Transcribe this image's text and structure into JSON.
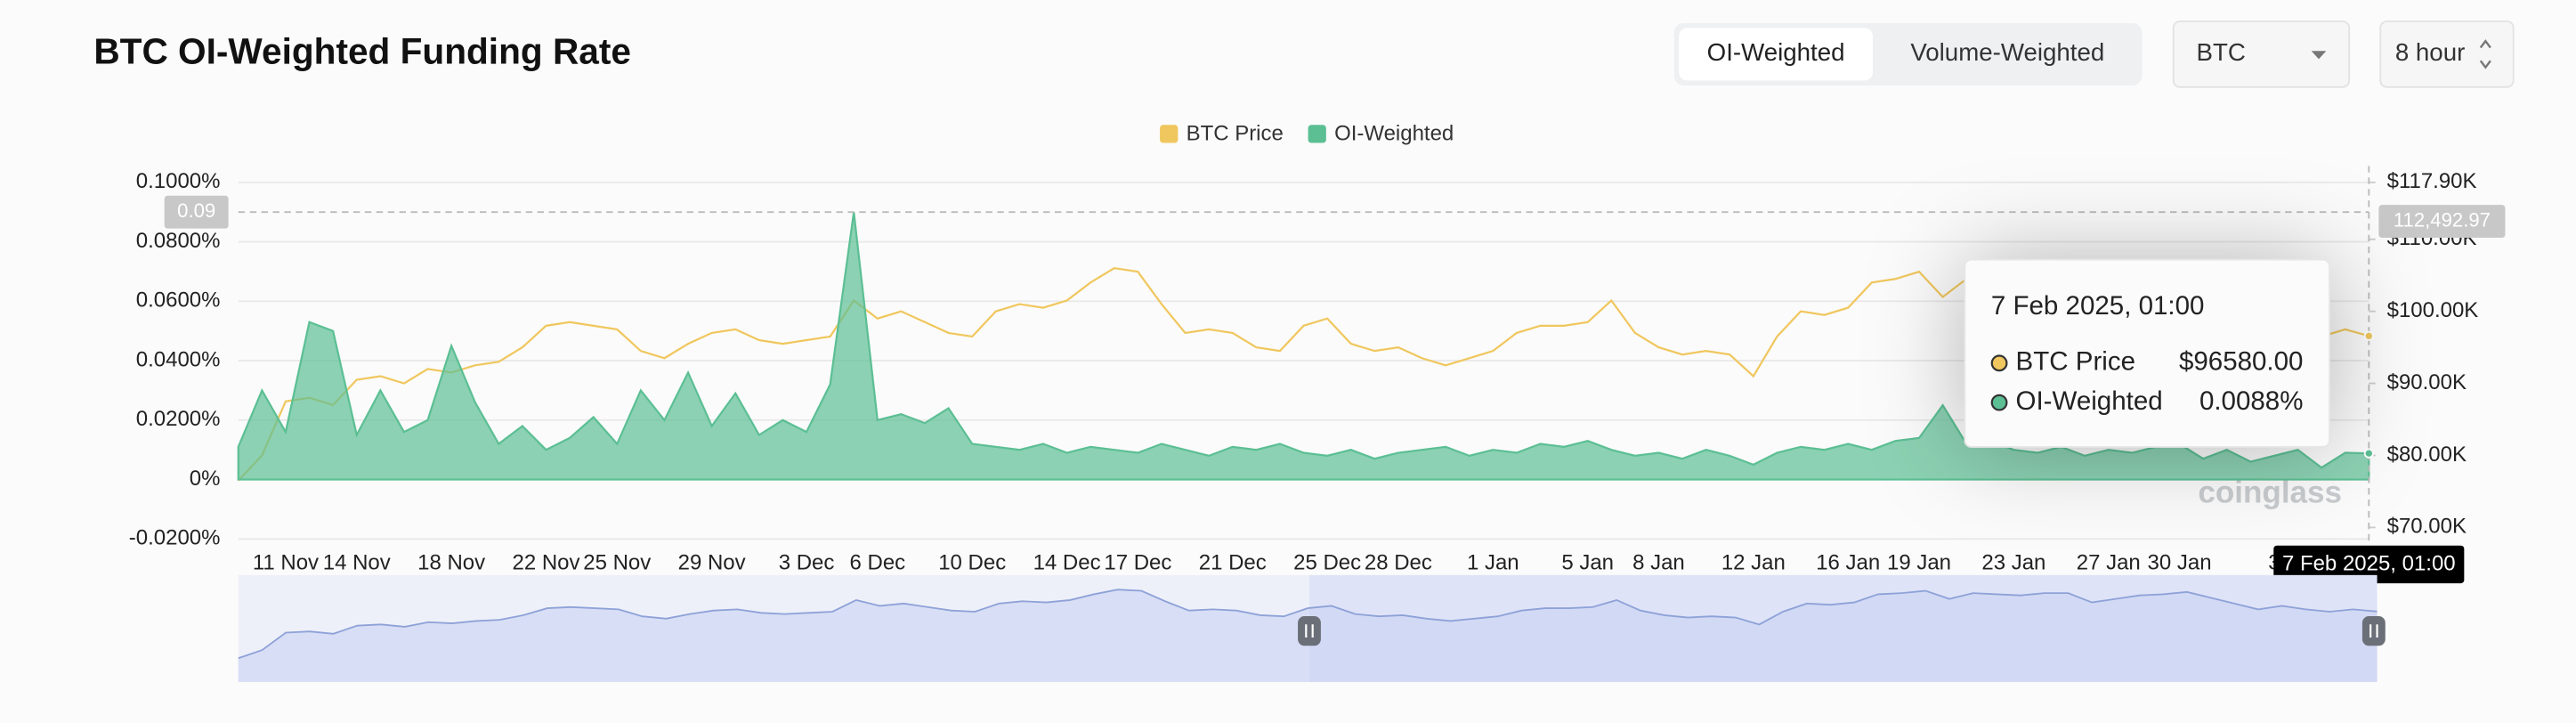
{
  "chart_data": {
    "type": "line",
    "title": "BTC OI-Weighted Funding Rate",
    "categories": [
      null,
      null,
      "11 Nov",
      null,
      null,
      "14 Nov",
      null,
      null,
      null,
      "18 Nov",
      null,
      null,
      null,
      "22 Nov",
      null,
      null,
      "25 Nov",
      null,
      null,
      null,
      "29 Nov",
      null,
      null,
      null,
      "3 Dec",
      null,
      null,
      "6 Dec",
      null,
      null,
      null,
      "10 Dec",
      null,
      null,
      null,
      "14 Dec",
      null,
      null,
      "17 Dec",
      null,
      null,
      null,
      "21 Dec",
      null,
      null,
      null,
      "25 Dec",
      null,
      null,
      "28 Dec",
      null,
      null,
      null,
      "1 Jan",
      null,
      null,
      null,
      "5 Jan",
      null,
      null,
      "8 Jan",
      null,
      null,
      null,
      "12 Jan",
      null,
      null,
      null,
      "16 Jan",
      null,
      null,
      "19 Jan",
      null,
      null,
      null,
      "23 Jan",
      null,
      null,
      null,
      "27 Jan",
      null,
      null,
      "30 Jan",
      null,
      null,
      null,
      "3",
      null,
      null,
      null,
      "7 Feb 2025, 01:00"
    ],
    "series": [
      {
        "name": "BTC Price",
        "color": "#f0c75e",
        "axis": "y2",
        "type": "line",
        "values": [
          76500,
          80000,
          87500,
          88000,
          87000,
          90500,
          91000,
          90000,
          92000,
          91500,
          92500,
          93000,
          95000,
          98000,
          98500,
          98000,
          97500,
          94500,
          93500,
          95500,
          97000,
          97500,
          96000,
          95500,
          96000,
          96500,
          101500,
          99000,
          100000,
          98500,
          97000,
          96500,
          100000,
          101000,
          100500,
          101500,
          104000,
          106000,
          105500,
          101000,
          97000,
          97500,
          97000,
          95000,
          94500,
          98000,
          99000,
          95500,
          94500,
          95000,
          93500,
          92500,
          93500,
          94500,
          97000,
          98000,
          98000,
          98500,
          101500,
          97000,
          95000,
          94000,
          94500,
          94000,
          91000,
          96500,
          100000,
          99500,
          100500,
          104000,
          104500,
          105500,
          102000,
          104500,
          104000,
          103500,
          104500,
          104500,
          100500,
          102000,
          103500,
          104000,
          105000,
          102500,
          100000,
          97500,
          99000,
          97500,
          96500,
          97500,
          96580
        ],
        "value_labels": [
          null,
          null,
          null,
          null,
          null,
          null,
          null,
          null,
          null,
          null,
          null,
          null,
          null,
          null,
          null,
          null,
          null,
          null,
          null,
          null,
          null,
          null,
          null,
          null,
          null,
          null,
          null,
          null,
          null,
          null,
          null,
          null,
          null,
          null,
          null,
          null,
          null,
          null,
          null,
          null,
          null,
          null,
          null,
          null,
          null,
          null,
          null,
          null,
          null,
          null,
          null,
          null,
          null,
          null,
          null,
          null,
          null,
          null,
          null,
          null,
          null,
          null,
          null,
          null,
          null,
          null,
          null,
          null,
          null,
          null,
          null,
          null,
          null,
          null,
          null,
          null,
          null,
          null,
          null,
          null,
          null,
          null,
          null,
          null,
          null,
          null,
          null,
          null,
          null,
          null,
          "$96580.00"
        ]
      },
      {
        "name": "OI-Weighted",
        "color": "#5cbf94",
        "type": "area",
        "values": [
          0.011,
          0.03,
          0.016,
          0.053,
          0.05,
          0.015,
          0.03,
          0.016,
          0.02,
          0.045,
          0.026,
          0.012,
          0.018,
          0.01,
          0.014,
          0.021,
          0.012,
          0.03,
          0.02,
          0.036,
          0.018,
          0.029,
          0.015,
          0.02,
          0.016,
          0.032,
          0.09,
          0.02,
          0.022,
          0.019,
          0.024,
          0.012,
          0.011,
          0.01,
          0.012,
          0.009,
          0.011,
          0.01,
          0.009,
          0.012,
          0.01,
          0.008,
          0.011,
          0.01,
          0.012,
          0.009,
          0.008,
          0.01,
          0.007,
          0.009,
          0.01,
          0.011,
          0.008,
          0.01,
          0.009,
          0.012,
          0.011,
          0.013,
          0.01,
          0.008,
          0.009,
          0.007,
          0.01,
          0.008,
          0.005,
          0.009,
          0.011,
          0.01,
          0.012,
          0.01,
          0.013,
          0.014,
          0.025,
          0.012,
          0.013,
          0.01,
          0.009,
          0.011,
          0.008,
          0.01,
          0.009,
          0.011,
          0.012,
          0.007,
          0.01,
          0.006,
          0.008,
          0.01,
          0.004,
          0.009,
          0.0088
        ],
        "value_labels": [
          null,
          null,
          null,
          null,
          null,
          null,
          null,
          null,
          null,
          null,
          null,
          null,
          null,
          null,
          null,
          null,
          null,
          null,
          null,
          null,
          null,
          null,
          null,
          null,
          null,
          null,
          null,
          null,
          null,
          null,
          null,
          null,
          null,
          null,
          null,
          null,
          null,
          null,
          null,
          null,
          null,
          null,
          null,
          null,
          null,
          null,
          null,
          null,
          null,
          null,
          null,
          null,
          null,
          null,
          null,
          null,
          null,
          null,
          null,
          null,
          null,
          null,
          null,
          null,
          null,
          null,
          null,
          null,
          null,
          null,
          null,
          null,
          null,
          null,
          null,
          null,
          null,
          null,
          null,
          null,
          null,
          null,
          null,
          null,
          null,
          null,
          null,
          null,
          null,
          null,
          "0.0088%"
        ]
      }
    ],
    "ylim": [
      -0.02,
      0.1
    ],
    "yticks": [
      {
        "value": -0.02,
        "label": "-0.0200%"
      },
      {
        "value": 0,
        "label": "0%"
      },
      {
        "value": 0.02,
        "label": "0.0200%"
      },
      {
        "value": 0.04,
        "label": "0.0400%"
      },
      {
        "value": 0.06,
        "label": "0.0600%"
      },
      {
        "value": 0.08,
        "label": "0.0800%"
      },
      {
        "value": 0.1,
        "label": "0.1000%"
      }
    ],
    "y2lim": [
      68400,
      117900
    ],
    "y2ticks": [
      {
        "value": 70000,
        "label": "$70.00K"
      },
      {
        "value": 80000,
        "label": "$80.00K"
      },
      {
        "value": 90000,
        "label": "$90.00K"
      },
      {
        "value": 100000,
        "label": "$100.00K"
      },
      {
        "value": 110000,
        "label": "$110.00K"
      },
      {
        "value": 117900,
        "label": "$117.90K"
      }
    ],
    "grid": true,
    "legend": "top",
    "crosshair": {
      "y": 0.09,
      "y2": {
        "value": 112492.97,
        "label": "112,492.97"
      }
    }
  },
  "controls": {
    "tabs": [
      "OI-Weighted",
      "Volume-Weighted"
    ],
    "symbol": "BTC",
    "interval": "8 hour"
  },
  "watermark": "coinglass"
}
